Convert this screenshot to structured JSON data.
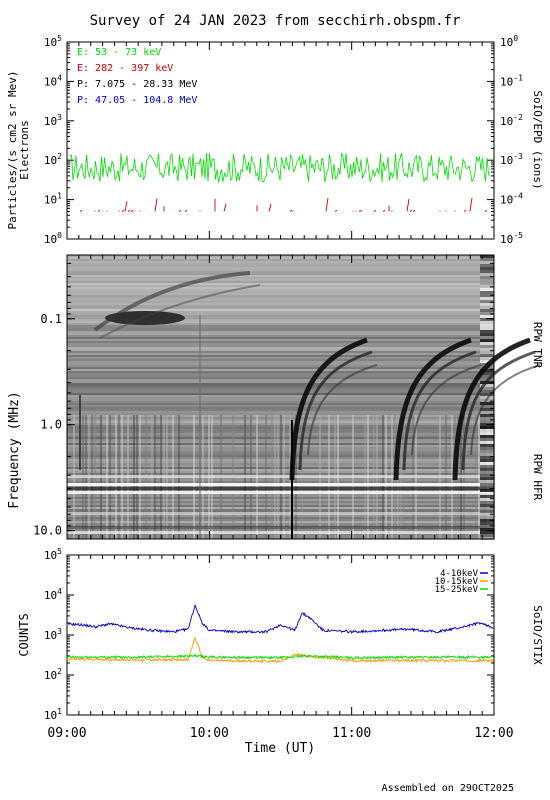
{
  "title": "Survey of 24 JAN 2023 from secchirh.obspm.fr",
  "footer": "Assembled on 29OCT2025",
  "colors": {
    "green": "#00dd00",
    "red": "#cc0000",
    "black": "#000000",
    "blue": "#0000cc",
    "orange": "#ff9900"
  },
  "x_axis": {
    "label": "Time (UT)",
    "range_hours": [
      9,
      12
    ],
    "ticks": [
      {
        "value": 9,
        "label": "09:00"
      },
      {
        "value": 10,
        "label": "10:00"
      },
      {
        "value": 11,
        "label": "11:00"
      },
      {
        "value": 12,
        "label": "12:00"
      }
    ]
  },
  "chart_data": [
    {
      "type": "line",
      "panel": "SoIO/EPD particles",
      "ylabel": "Particles/(s cm2 sr Mev)",
      "ylabel2": "Electrons",
      "right_label": "SoIO/EPD (ions)",
      "yscale": "log",
      "ylim": [
        1,
        100000
      ],
      "y_ticks": [
        "10^0",
        "10^1",
        "10^2",
        "10^3",
        "10^4",
        "10^5"
      ],
      "y2lim": [
        1e-05,
        1
      ],
      "y2_ticks": [
        "10^-5",
        "10^-4",
        "10^-3",
        "10^-2",
        "10^-1",
        "10^0"
      ],
      "legend": [
        {
          "label": "E: 53 - 73 keV",
          "color": "#00dd00"
        },
        {
          "label": "E: 282 - 397 keV",
          "color": "#cc0000"
        },
        {
          "label": "P: 7.075 - 28.33 MeV",
          "color": "#000000"
        },
        {
          "label": "P: 47.05 - 104.8 MeV",
          "color": "#0000cc"
        }
      ],
      "series": [
        {
          "name": "E: 53 - 73 keV",
          "level": 65
        },
        {
          "name": "E: 282 - 397 keV",
          "level": 5
        }
      ]
    },
    {
      "type": "heatmap",
      "panel": "RPW radio spectrogram",
      "ylabel": "Frequency (MHz)",
      "yscale": "log",
      "ylim": [
        12,
        0.025
      ],
      "y_ticks": [
        "0.1",
        "1.0",
        "10.0"
      ],
      "right_labels": [
        "RPW TNR",
        "RPW HFR"
      ],
      "bursts": [
        {
          "start_time": 9.3,
          "note": "slow drifting band 0.1-0.05 MHz"
        },
        {
          "start_time": 10.6,
          "note": "type III"
        },
        {
          "start_time": 11.35,
          "note": "type III"
        },
        {
          "start_time": 11.65,
          "note": "type III"
        }
      ]
    },
    {
      "type": "line",
      "panel": "SoIO/STIX",
      "ylabel": "COUNTS",
      "right_label": "SoIO/STIX",
      "yscale": "log",
      "ylim": [
        10,
        100000
      ],
      "y_ticks": [
        "10^1",
        "10^2",
        "10^3",
        "10^4",
        "10^5"
      ],
      "legend": [
        {
          "label": "4-10keV",
          "color": "#0000cc"
        },
        {
          "label": "10-15keV",
          "color": "#ff9900"
        },
        {
          "label": "15-25keV",
          "color": "#00dd00"
        }
      ],
      "series": [
        {
          "name": "4-10keV",
          "color": "#0000cc",
          "x": [
            9.0,
            9.1,
            9.2,
            9.3,
            9.45,
            9.6,
            9.75,
            9.85,
            9.9,
            9.95,
            10.0,
            10.2,
            10.4,
            10.5,
            10.6,
            10.65,
            10.7,
            10.8,
            11.0,
            11.2,
            11.4,
            11.6,
            11.75,
            11.9,
            12.0
          ],
          "y": [
            1900,
            1800,
            1600,
            1900,
            1500,
            1300,
            1200,
            1400,
            5500,
            2000,
            1300,
            1200,
            1200,
            1800,
            1300,
            3500,
            2800,
            1300,
            1200,
            1300,
            1400,
            1200,
            1500,
            2000,
            1500
          ]
        },
        {
          "name": "10-15keV",
          "color": "#ff9900",
          "x": [
            9.0,
            9.5,
            9.85,
            9.9,
            9.95,
            10.0,
            10.5,
            10.6,
            10.7,
            11.0,
            11.5,
            12.0
          ],
          "y": [
            250,
            240,
            240,
            850,
            280,
            230,
            220,
            330,
            290,
            230,
            230,
            230
          ]
        },
        {
          "name": "15-25keV",
          "color": "#00dd00",
          "x": [
            9.0,
            9.5,
            9.9,
            10.0,
            10.5,
            10.7,
            11.0,
            11.5,
            12.0
          ],
          "y": [
            280,
            280,
            300,
            280,
            270,
            300,
            270,
            280,
            280
          ]
        }
      ]
    }
  ]
}
